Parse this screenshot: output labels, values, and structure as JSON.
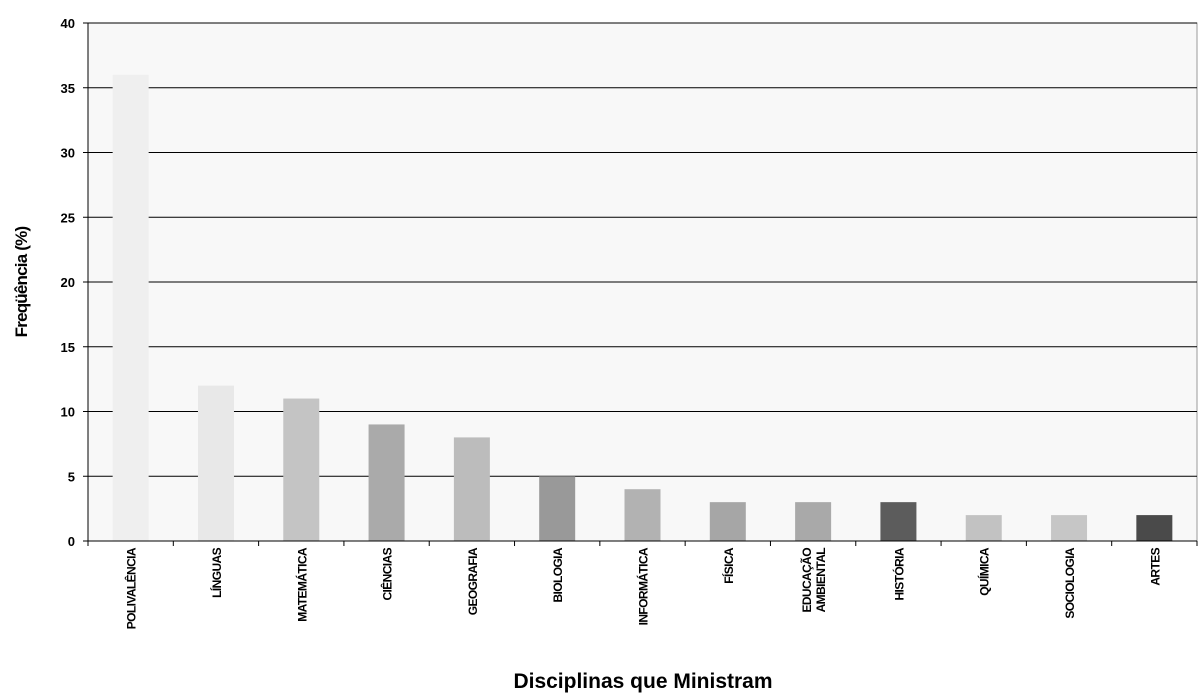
{
  "chart_data": {
    "type": "bar",
    "title": "",
    "xlabel": "Disciplinas que Ministram",
    "ylabel": "Freqüência (%)",
    "ylim": [
      0,
      40
    ],
    "yticks": [
      0,
      5,
      10,
      15,
      20,
      25,
      30,
      35,
      40
    ],
    "grid": true,
    "legend": "none",
    "categories": [
      [
        "POLIVALÊNCIA"
      ],
      [
        "LÍNGUAS"
      ],
      [
        "MATEMÁTICA"
      ],
      [
        "CIÊNCIAS"
      ],
      [
        "GEOGRAFIA"
      ],
      [
        "BIOLOGIA"
      ],
      [
        "INFORMÁTICA"
      ],
      [
        "FÍSICA"
      ],
      [
        "EDUCAÇÃO",
        "AMBIENTAL"
      ],
      [
        "HISTÓRIA"
      ],
      [
        "QUÍMICA"
      ],
      [
        "SOCIOLOGIA"
      ],
      [
        "ARTES"
      ]
    ],
    "values": [
      36,
      12,
      11,
      9,
      8,
      5,
      4,
      3,
      3,
      3,
      2,
      2,
      2
    ],
    "colors": [
      "#efefef",
      "#e8e8e8",
      "#c4c4c4",
      "#aaaaaa",
      "#bcbcbc",
      "#999999",
      "#b2b2b2",
      "#a6a6a6",
      "#a9a9a9",
      "#5c5c5c",
      "#c2c2c2",
      "#c6c6c6",
      "#4a4a4a"
    ],
    "plot_background": "#f8f8f8"
  }
}
